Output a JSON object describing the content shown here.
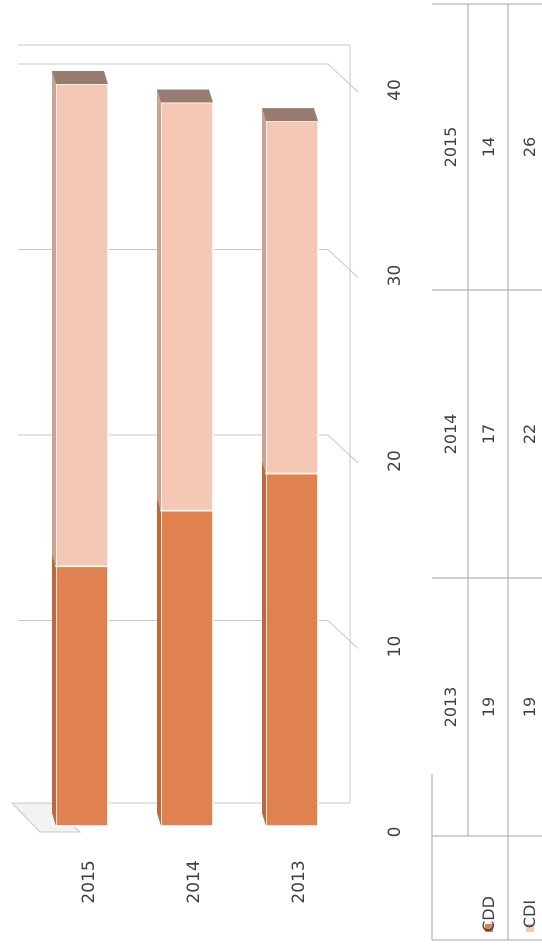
{
  "chart_data": {
    "type": "bar",
    "stacked": true,
    "three_d": true,
    "orientation": "horizontal",
    "categories": [
      "2015",
      "2014",
      "2013"
    ],
    "series": [
      {
        "name": "CDD",
        "color": "#e0824f",
        "values": [
          14,
          17,
          19
        ]
      },
      {
        "name": "CDI",
        "color": "#f5c8b5",
        "values": [
          26,
          22,
          19
        ]
      }
    ],
    "axis": {
      "ticks": [
        "0",
        "10",
        "20",
        "30",
        "40"
      ],
      "xlim": [
        0,
        40
      ],
      "grid": true
    },
    "data_table": {
      "columns": [
        "2013",
        "2014",
        "2015"
      ],
      "rows": [
        {
          "name": "CDD",
          "values": [
            "19",
            "17",
            "14"
          ]
        },
        {
          "name": "CDI",
          "values": [
            "19",
            "22",
            "26"
          ]
        }
      ]
    }
  }
}
